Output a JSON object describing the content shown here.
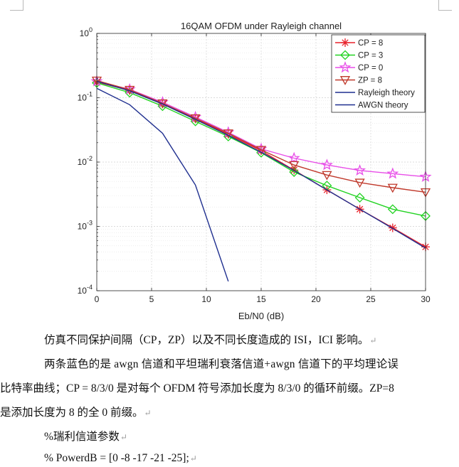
{
  "chart_data": {
    "type": "line",
    "title": "16QAM OFDM under Rayleigh channel",
    "xlabel": "Eb/N0 (dB)",
    "ylabel": "",
    "xlim": [
      0,
      30
    ],
    "ylim_exp": [
      -4,
      0
    ],
    "yscale": "log",
    "grid": true,
    "legend_position": "top-right",
    "xticks": [
      "0",
      "5",
      "10",
      "15",
      "20",
      "25",
      "30"
    ],
    "yticks": [
      {
        "base": "10",
        "exp": "0"
      },
      {
        "base": "10",
        "exp": "-1"
      },
      {
        "base": "10",
        "exp": "-2"
      },
      {
        "base": "10",
        "exp": "-3"
      },
      {
        "base": "10",
        "exp": "-4"
      }
    ],
    "series": [
      {
        "name": "CP = 8",
        "color": "#e8212a",
        "marker": "asterisk",
        "x": [
          0,
          3,
          6,
          9,
          12,
          15,
          18,
          21,
          24,
          27,
          30
        ],
        "y": [
          0.175,
          0.13,
          0.08,
          0.047,
          0.027,
          0.015,
          0.0075,
          0.0037,
          0.00185,
          0.00095,
          0.00048
        ]
      },
      {
        "name": "CP = 3",
        "color": "#23d323",
        "marker": "diamond",
        "x": [
          0,
          3,
          6,
          9,
          12,
          15,
          18,
          21,
          24,
          27,
          30
        ],
        "y": [
          0.17,
          0.12,
          0.074,
          0.043,
          0.025,
          0.014,
          0.007,
          0.0043,
          0.0028,
          0.00185,
          0.00145
        ]
      },
      {
        "name": "CP = 0",
        "color": "#e84ee8",
        "marker": "pentagram",
        "x": [
          0,
          3,
          6,
          9,
          12,
          15,
          18,
          21,
          24,
          27,
          30
        ],
        "y": [
          0.18,
          0.135,
          0.085,
          0.05,
          0.029,
          0.016,
          0.0115,
          0.009,
          0.0074,
          0.0066,
          0.0059
        ]
      },
      {
        "name": "ZP = 8",
        "color": "#c0392b",
        "marker": "triangle-down",
        "x": [
          0,
          3,
          6,
          9,
          12,
          15,
          18,
          21,
          24,
          27,
          30
        ],
        "y": [
          0.185,
          0.133,
          0.082,
          0.048,
          0.028,
          0.0155,
          0.009,
          0.0063,
          0.0048,
          0.004,
          0.0034
        ]
      },
      {
        "name": "Rayleigh theory",
        "color": "#1f2f8f",
        "marker": "none",
        "x": [
          0,
          3,
          6,
          9,
          12,
          15,
          18,
          21,
          24,
          27,
          30
        ],
        "y": [
          0.18,
          0.128,
          0.08,
          0.046,
          0.026,
          0.0142,
          0.0074,
          0.0037,
          0.00185,
          0.00093,
          0.00046
        ]
      },
      {
        "name": "AWGN theory",
        "color": "#1f2f8f",
        "marker": "none",
        "x": [
          0,
          3,
          6,
          9,
          12
        ],
        "y": [
          0.14,
          0.078,
          0.028,
          0.0044,
          0.00014
        ]
      }
    ]
  },
  "text": {
    "p1": "仿真不同保护间隔（CP，ZP）以及不同长度造成的 ISI，ICI 影响。",
    "p2": "两条蓝色的是  awgn  信道和平坦瑞利衰落信道+awgn  信道下的平均理论误",
    "p3": "比特率曲线；CP = 8/3/0 是对每个 OFDM 符号添加长度为 8/3/0 的循环前缀。ZP=8",
    "p4": "是添加长度为 8 的全 0 前缀。",
    "p5": "%瑞利信道参数",
    "p6": "% PowerdB = [0 -8 -17 -21 -25];",
    "return_mark": "↵"
  }
}
